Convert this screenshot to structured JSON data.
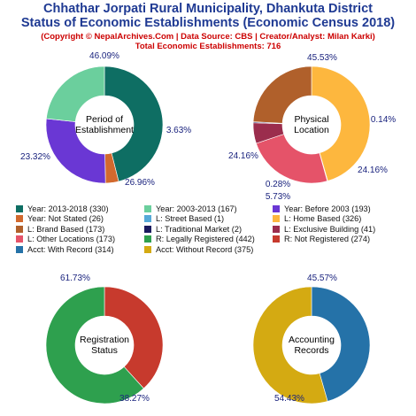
{
  "header": {
    "title_line1": "Chhathar Jorpati Rural Municipality, Dhankuta District",
    "title_line2": "Status of Economic Establishments (Economic Census 2018)",
    "copyright": "(Copyright © NepalArchives.Com | Data Source: CBS | Creator/Analyst: Milan Karki)",
    "total": "Total Economic Establishments: 716"
  },
  "chart_data": [
    {
      "type": "pie",
      "center_label": [
        "Period of",
        "Establishment"
      ],
      "labels": [
        "Year: 2013-2018",
        "Year: 2003-2013",
        "Year: Before 2003",
        "Year: Not Stated"
      ],
      "values": [
        330,
        167,
        193,
        26
      ],
      "order": [
        0,
        3,
        2,
        1
      ],
      "percent_labels": [
        "46.09%",
        "23.32%",
        "26.96%",
        "3.63%"
      ],
      "colors": [
        "#0e6e63",
        "#6bcf9d",
        "#6a37d4",
        "#d2692e"
      ]
    },
    {
      "type": "pie",
      "center_label": [
        "Physical",
        "Location"
      ],
      "labels": [
        "L: Street Based",
        "L: Home Based",
        "L: Brand Based",
        "L: Traditional Market",
        "L: Exclusive Building",
        "L: Other Locations"
      ],
      "values": [
        1,
        326,
        173,
        2,
        41,
        173
      ],
      "order": [
        1,
        0,
        5,
        4,
        3,
        2
      ],
      "percent_labels": [
        "0.14%",
        "45.53%",
        "24.16%",
        "0.28%",
        "5.73%",
        "24.16%"
      ],
      "colors": [
        "#55a9d8",
        "#fdb73e",
        "#b0602b",
        "#1a1a5e",
        "#9b2d4d",
        "#e55369"
      ]
    },
    {
      "type": "pie",
      "center_label": [
        "Registration",
        "Status"
      ],
      "labels": [
        "R: Legally Registered",
        "R: Not Registered"
      ],
      "values": [
        442,
        274
      ],
      "order": [
        1,
        0
      ],
      "percent_labels": [
        "61.73%",
        "38.27%"
      ],
      "colors": [
        "#2ea04e",
        "#c73a2d"
      ]
    },
    {
      "type": "pie",
      "center_label": [
        "Accounting",
        "Records"
      ],
      "labels": [
        "Acct: With Record",
        "Acct: Without Record"
      ],
      "values": [
        314,
        375
      ],
      "order": [
        0,
        1
      ],
      "percent_labels": [
        "45.57%",
        "54.43%"
      ],
      "colors": [
        "#2572a8",
        "#d4aa12"
      ]
    }
  ],
  "legend": [
    {
      "text": "Year: 2013-2018 (330)",
      "color": "#0e6e63"
    },
    {
      "text": "Year: 2003-2013 (167)",
      "color": "#6bcf9d"
    },
    {
      "text": "Year: Before 2003 (193)",
      "color": "#6a37d4"
    },
    {
      "text": "Year: Not Stated (26)",
      "color": "#d2692e"
    },
    {
      "text": "L: Street Based (1)",
      "color": "#55a9d8"
    },
    {
      "text": "L: Home Based (326)",
      "color": "#fdb73e"
    },
    {
      "text": "L: Brand Based (173)",
      "color": "#b0602b"
    },
    {
      "text": "L: Traditional Market (2)",
      "color": "#1a1a5e"
    },
    {
      "text": "L: Exclusive Building (41)",
      "color": "#9b2d4d"
    },
    {
      "text": "L: Other Locations (173)",
      "color": "#e55369"
    },
    {
      "text": "R: Legally Registered (442)",
      "color": "#2ea04e"
    },
    {
      "text": "R: Not Registered (274)",
      "color": "#c73a2d"
    },
    {
      "text": "Acct: With Record (314)",
      "color": "#2572a8"
    },
    {
      "text": "Acct: Without Record (375)",
      "color": "#d4aa12"
    }
  ]
}
